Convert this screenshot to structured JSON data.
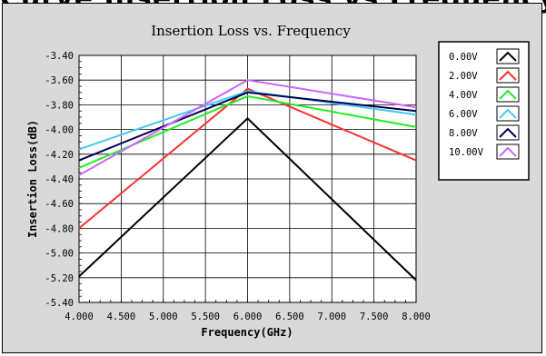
{
  "header_text": "Curve Insertion Loss vs Frequency",
  "chart_data": {
    "type": "line",
    "title": "Insertion Loss vs. Frequency",
    "xlabel": "Frequency(GHz)",
    "ylabel": "Insertion Loss(dB)",
    "xlim": [
      4.0,
      8.0
    ],
    "ylim": [
      -5.4,
      -3.4
    ],
    "x_ticks": [
      "4.000",
      "4.500",
      "5.000",
      "5.500",
      "6.000",
      "6.500",
      "7.000",
      "7.500",
      "8.000"
    ],
    "y_ticks": [
      "-3.40",
      "-3.60",
      "-3.80",
      "-4.00",
      "-4.20",
      "-4.40",
      "-4.60",
      "-4.80",
      "-5.00",
      "-5.20",
      "-5.40"
    ],
    "grid": true,
    "legend_position": "right",
    "x": [
      4.0,
      6.0,
      8.0
    ],
    "series": [
      {
        "name": "0.00V",
        "color": "#000000",
        "values": [
          -5.19,
          -3.91,
          -5.22
        ]
      },
      {
        "name": "2.00V",
        "color": "#ff3030",
        "values": [
          -4.8,
          -3.67,
          -4.25
        ]
      },
      {
        "name": "4.00V",
        "color": "#22ee22",
        "values": [
          -4.31,
          -3.73,
          -3.98
        ]
      },
      {
        "name": "6.00V",
        "color": "#44c8f0",
        "values": [
          -4.16,
          -3.69,
          -3.88
        ]
      },
      {
        "name": "8.00V",
        "color": "#000050",
        "values": [
          -4.25,
          -3.7,
          -3.85
        ]
      },
      {
        "name": "10.00V",
        "color": "#cc66ff",
        "values": [
          -4.37,
          -3.6,
          -3.82
        ]
      }
    ]
  }
}
